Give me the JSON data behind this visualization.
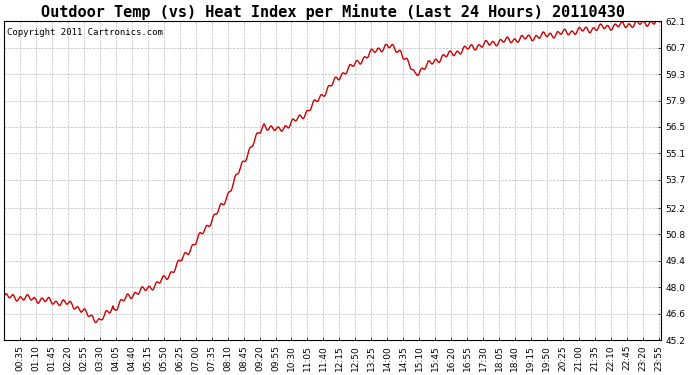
{
  "title": "Outdoor Temp (vs) Heat Index per Minute (Last 24 Hours) 20110430",
  "copyright_text": "Copyright 2011 Cartronics.com",
  "line_color": "#cc0000",
  "background_color": "#ffffff",
  "plot_bg_color": "#ffffff",
  "yticks": [
    45.2,
    46.6,
    48.0,
    49.4,
    50.8,
    52.2,
    53.7,
    55.1,
    56.5,
    57.9,
    59.3,
    60.7,
    62.1
  ],
  "ylim": [
    45.2,
    62.1
  ],
  "xtick_labels": [
    "00:35",
    "01:10",
    "01:45",
    "02:20",
    "02:55",
    "03:30",
    "04:05",
    "04:40",
    "05:15",
    "05:50",
    "06:25",
    "07:00",
    "07:35",
    "08:10",
    "08:45",
    "09:20",
    "09:55",
    "10:30",
    "11:05",
    "11:40",
    "12:15",
    "12:50",
    "13:25",
    "14:00",
    "14:35",
    "15:10",
    "15:45",
    "16:20",
    "16:55",
    "17:30",
    "18:05",
    "18:40",
    "19:15",
    "19:50",
    "20:25",
    "21:00",
    "21:35",
    "22:10",
    "22:45",
    "23:20",
    "23:55"
  ],
  "title_fontsize": 11,
  "copyright_fontsize": 6.5,
  "tick_fontsize": 6.5,
  "grid_color": "#bbbbbb",
  "grid_linestyle": "--",
  "grid_linewidth": 0.5,
  "line_width": 1.0
}
